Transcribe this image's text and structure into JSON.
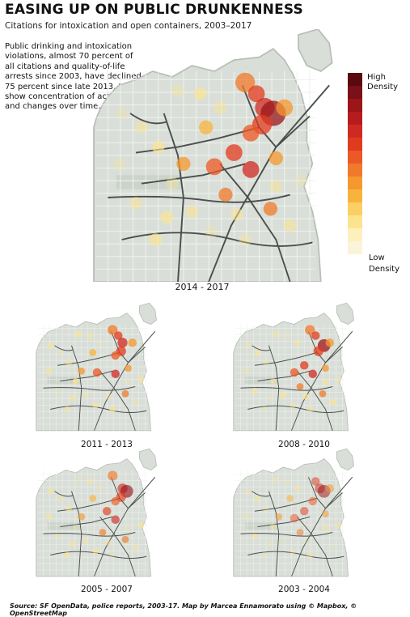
{
  "header": {
    "title": "EASING UP ON PUBLIC DRUNKENNESS",
    "subtitle": "Citations for intoxication and open containers, 2003–2017"
  },
  "intro_text": "Public drinking and intoxication violations, almost 70 percent of all citations and quality-of-life arrests since 2003, have declined 75 percent since late 2013. Maps show concentration of activity and changes over time.",
  "legend": {
    "high_label_1": "High",
    "high_label_2": "Density",
    "low_label_1": "Low",
    "low_label_2": "Density",
    "colors": [
      "#5a0a0f",
      "#7a1018",
      "#9b1519",
      "#b51c1e",
      "#cf2a22",
      "#e13b1f",
      "#ec5826",
      "#f07a2b",
      "#f4982f",
      "#f8b33d",
      "#fbcf63",
      "#fce48f",
      "#fdf0bc",
      "#fbf4d9"
    ]
  },
  "maps": {
    "main": {
      "period": "2014 - 2017",
      "intensity": 1.0
    },
    "a": {
      "period": "2011 - 2013",
      "intensity": 1.0
    },
    "b": {
      "period": "2008 - 2010",
      "intensity": 1.0
    },
    "c": {
      "period": "2005 - 2007",
      "intensity": 0.85
    },
    "d": {
      "period": "2003 - 2004",
      "intensity": 0.7
    }
  },
  "colors": {
    "land": "#d9dfd8",
    "land_stroke": "#b7beb6",
    "road": "#4a4f4c",
    "grid": "#eef1ee",
    "park": "#cbd3ca"
  },
  "source_text": "Source:  SF OpenData, police reports, 2003-17. Map by Marcea Ennamorato using © Mapbox, © OpenStreetMap"
}
